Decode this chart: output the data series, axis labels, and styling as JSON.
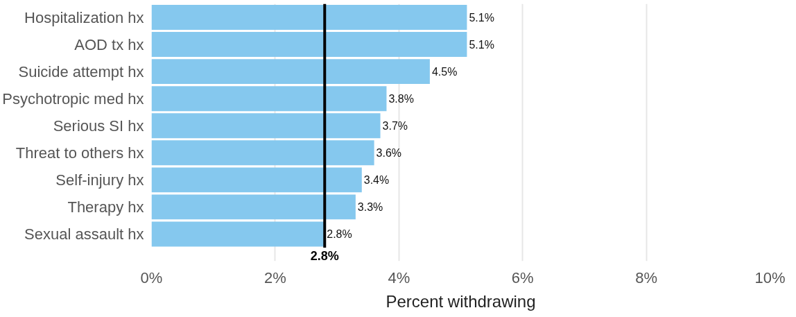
{
  "chart_data": {
    "type": "bar",
    "orientation": "horizontal",
    "xlabel": "Percent withdrawing",
    "categories": [
      "Hospitalization hx",
      "AOD tx hx",
      "Suicide attempt hx",
      "Psychotropic med hx",
      "Serious SI hx",
      "Threat to others hx",
      "Self-injury hx",
      "Therapy hx",
      "Sexual assault hx"
    ],
    "values": [
      5.1,
      5.1,
      4.5,
      3.8,
      3.7,
      3.6,
      3.4,
      3.3,
      2.8
    ],
    "value_labels": [
      "5.1%",
      "5.1%",
      "4.5%",
      "3.8%",
      "3.7%",
      "3.6%",
      "3.4%",
      "3.3%",
      "2.8%"
    ],
    "color": "#85c8ee",
    "xlim": [
      0,
      10
    ],
    "xticks": [
      {
        "value": 0,
        "label": "0%"
      },
      {
        "value": 2,
        "label": "2%"
      },
      {
        "value": 4,
        "label": "4%"
      },
      {
        "value": 6,
        "label": "6%"
      },
      {
        "value": 8,
        "label": "8%"
      },
      {
        "value": 10,
        "label": "10%"
      }
    ],
    "grid": "x",
    "ref_lines": [
      {
        "axis": "x",
        "value": 2.8,
        "label": "2.8%",
        "color": "#000000"
      }
    ]
  }
}
